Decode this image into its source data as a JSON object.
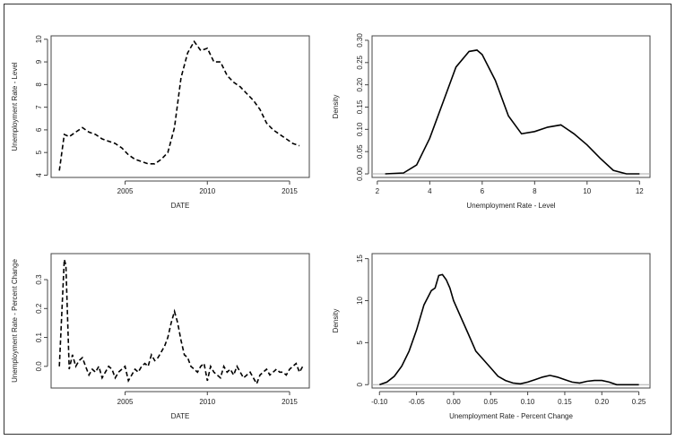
{
  "chart_data": [
    {
      "id": "p1",
      "type": "line",
      "title": "",
      "xlabel": "DATE",
      "ylabel": "Unemployment Rate - Level",
      "style": "dashed",
      "xlim": [
        2000.5,
        2016.2
      ],
      "ylim": [
        3.9,
        10.15
      ],
      "xticks": [
        2005,
        2010,
        2015
      ],
      "yticks": [
        4,
        5,
        6,
        7,
        8,
        9,
        10
      ],
      "x": [
        2001.0,
        2001.3,
        2001.6,
        2002.0,
        2002.4,
        2002.8,
        2003.2,
        2003.6,
        2004.0,
        2004.4,
        2004.8,
        2005.2,
        2005.6,
        2006.0,
        2006.4,
        2006.8,
        2007.2,
        2007.6,
        2008.0,
        2008.4,
        2008.8,
        2009.2,
        2009.6,
        2010.0,
        2010.4,
        2010.8,
        2011.2,
        2011.6,
        2012.0,
        2012.4,
        2012.8,
        2013.2,
        2013.6,
        2014.0,
        2014.4,
        2014.8,
        2015.2,
        2015.6
      ],
      "y": [
        4.2,
        5.8,
        5.7,
        5.9,
        6.1,
        5.9,
        5.8,
        5.6,
        5.5,
        5.4,
        5.2,
        4.9,
        4.7,
        4.6,
        4.5,
        4.5,
        4.7,
        5.0,
        6.1,
        8.3,
        9.4,
        9.9,
        9.5,
        9.6,
        9.0,
        9.0,
        8.4,
        8.1,
        7.9,
        7.6,
        7.3,
        6.9,
        6.3,
        6.0,
        5.8,
        5.6,
        5.4,
        5.3
      ]
    },
    {
      "id": "p2",
      "type": "line",
      "title": "",
      "xlabel": "Unemployment Rate - Level",
      "ylabel": "Density",
      "style": "solid",
      "xlim": [
        1.8,
        12.4
      ],
      "ylim": [
        -0.008,
        0.31
      ],
      "xticks": [
        2,
        4,
        6,
        8,
        10,
        12
      ],
      "yticks": [
        0.0,
        0.05,
        0.1,
        0.15,
        0.2,
        0.25,
        0.3
      ],
      "ytick_labels": [
        "0.00",
        "0.05",
        "0.10",
        "0.15",
        "0.20",
        "0.25",
        "0.30"
      ],
      "baseline": 0,
      "x": [
        2.3,
        3.0,
        3.5,
        4.0,
        4.5,
        5.0,
        5.5,
        5.8,
        6.0,
        6.5,
        7.0,
        7.5,
        8.0,
        8.5,
        9.0,
        9.5,
        10.0,
        10.5,
        11.0,
        11.5,
        12.0
      ],
      "y": [
        0.0,
        0.002,
        0.02,
        0.08,
        0.16,
        0.24,
        0.275,
        0.278,
        0.268,
        0.21,
        0.13,
        0.09,
        0.095,
        0.105,
        0.11,
        0.09,
        0.065,
        0.035,
        0.008,
        0.0,
        0.0
      ]
    },
    {
      "id": "p3",
      "type": "line",
      "title": "",
      "xlabel": "DATE",
      "ylabel": "Unemployment Rate - Percent Change",
      "style": "dashed",
      "xlim": [
        2000.5,
        2016.2
      ],
      "ylim": [
        -0.075,
        0.39
      ],
      "xticks": [
        2005,
        2010,
        2015
      ],
      "yticks": [
        0.0,
        0.1,
        0.2,
        0.3
      ],
      "ytick_labels": [
        "0.0",
        "0.1",
        "0.2",
        "0.3"
      ],
      "x": [
        2001.0,
        2001.3,
        2001.4,
        2001.6,
        2001.8,
        2002.0,
        2002.2,
        2002.4,
        2002.6,
        2002.8,
        2003.0,
        2003.2,
        2003.4,
        2003.6,
        2003.8,
        2004.0,
        2004.2,
        2004.4,
        2004.6,
        2004.8,
        2005.0,
        2005.2,
        2005.4,
        2005.6,
        2005.8,
        2006.0,
        2006.2,
        2006.4,
        2006.6,
        2006.8,
        2007.0,
        2007.2,
        2007.4,
        2007.6,
        2007.8,
        2008.0,
        2008.2,
        2008.4,
        2008.6,
        2008.8,
        2009.0,
        2009.2,
        2009.4,
        2009.6,
        2009.8,
        2010.0,
        2010.2,
        2010.4,
        2010.6,
        2010.8,
        2011.0,
        2011.2,
        2011.4,
        2011.6,
        2011.8,
        2012.0,
        2012.2,
        2012.4,
        2012.6,
        2012.8,
        2013.0,
        2013.2,
        2013.4,
        2013.6,
        2013.8,
        2014.0,
        2014.2,
        2014.4,
        2014.6,
        2014.8,
        2015.0,
        2015.2,
        2015.4,
        2015.6,
        2015.8
      ],
      "y": [
        0.0,
        0.37,
        0.35,
        -0.01,
        0.04,
        0.0,
        0.02,
        0.03,
        0.0,
        -0.03,
        -0.01,
        -0.02,
        0.0,
        -0.04,
        -0.02,
        0.0,
        -0.01,
        -0.04,
        -0.02,
        -0.01,
        0.0,
        -0.05,
        -0.03,
        -0.01,
        -0.02,
        0.0,
        0.01,
        0.0,
        0.04,
        0.02,
        0.03,
        0.05,
        0.07,
        0.1,
        0.15,
        0.19,
        0.15,
        0.09,
        0.04,
        0.03,
        0.0,
        -0.01,
        -0.02,
        0.0,
        0.01,
        -0.05,
        0.0,
        -0.02,
        -0.03,
        -0.04,
        0.0,
        -0.02,
        -0.01,
        -0.03,
        0.0,
        -0.02,
        -0.04,
        -0.03,
        -0.02,
        -0.04,
        -0.06,
        -0.03,
        -0.02,
        -0.01,
        -0.03,
        -0.02,
        -0.01,
        -0.02,
        -0.02,
        -0.03,
        -0.01,
        0.0,
        0.01,
        -0.02,
        0.0
      ]
    },
    {
      "id": "p4",
      "type": "line",
      "title": "",
      "xlabel": "Unemployment Rate - Percent Change",
      "ylabel": "Density",
      "style": "solid",
      "xlim": [
        -0.11,
        0.265
      ],
      "ylim": [
        -0.4,
        15.6
      ],
      "xticks": [
        -0.1,
        -0.05,
        0.0,
        0.05,
        0.1,
        0.15,
        0.2,
        0.25
      ],
      "xtick_labels": [
        "-0.10",
        "-0.05",
        "0.00",
        "0.05",
        "0.10",
        "0.15",
        "0.20",
        "0.25"
      ],
      "yticks": [
        0,
        5,
        10,
        15
      ],
      "baseline": 0,
      "x": [
        -0.1,
        -0.09,
        -0.08,
        -0.07,
        -0.06,
        -0.05,
        -0.04,
        -0.03,
        -0.025,
        -0.02,
        -0.015,
        -0.01,
        -0.005,
        0.0,
        0.01,
        0.02,
        0.03,
        0.04,
        0.05,
        0.06,
        0.07,
        0.08,
        0.09,
        0.1,
        0.11,
        0.12,
        0.13,
        0.14,
        0.15,
        0.16,
        0.17,
        0.18,
        0.19,
        0.2,
        0.21,
        0.22,
        0.23,
        0.25
      ],
      "y": [
        0.0,
        0.3,
        1.0,
        2.2,
        4.0,
        6.5,
        9.5,
        11.2,
        11.5,
        13.0,
        13.1,
        12.5,
        11.5,
        10.0,
        8.0,
        6.0,
        4.0,
        3.0,
        2.0,
        1.0,
        0.5,
        0.2,
        0.1,
        0.3,
        0.6,
        0.9,
        1.1,
        0.9,
        0.6,
        0.3,
        0.2,
        0.4,
        0.5,
        0.5,
        0.3,
        0.0,
        0.0,
        0.0
      ]
    }
  ]
}
